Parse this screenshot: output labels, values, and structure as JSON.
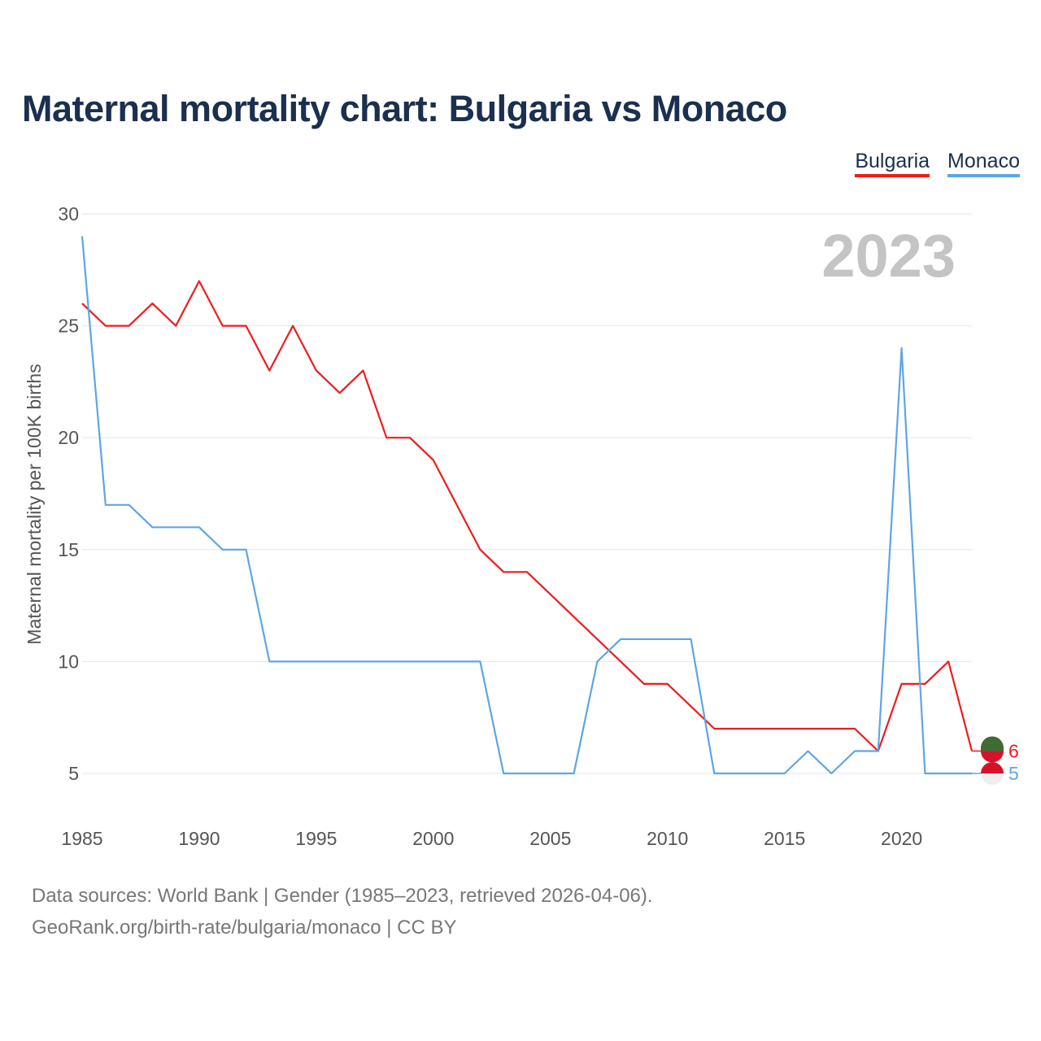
{
  "title": "Maternal mortality chart: Bulgaria vs Monaco",
  "legend": {
    "bulgaria": "Bulgaria",
    "monaco": "Monaco"
  },
  "colors": {
    "bulgaria": "#ee1c1c",
    "monaco": "#5ea5e5",
    "title": "#1b2f4e",
    "grid": "#e6e6e6"
  },
  "year_badge": "2023",
  "end_labels": {
    "bulgaria": "6",
    "monaco": "5"
  },
  "footer": {
    "source": "Data sources: World Bank | Gender (1985–2023, retrieved 2026-04-06).",
    "attribution": "GeoRank.org/birth-rate/bulgaria/monaco | CC BY"
  },
  "chart_data": {
    "type": "line",
    "title": "Maternal mortality chart: Bulgaria vs Monaco",
    "xlabel": "",
    "ylabel": "Maternal mortality per 100K births",
    "xlim": [
      1985,
      2023
    ],
    "ylim": [
      4,
      30
    ],
    "x_ticks": [
      1985,
      1990,
      1995,
      2000,
      2005,
      2010,
      2015,
      2020
    ],
    "y_ticks": [
      5,
      10,
      15,
      20,
      25,
      30
    ],
    "grid": true,
    "legend": "top-right",
    "x": [
      1985,
      1986,
      1987,
      1988,
      1989,
      1990,
      1991,
      1992,
      1993,
      1994,
      1995,
      1996,
      1997,
      1998,
      1999,
      2000,
      2001,
      2002,
      2003,
      2004,
      2005,
      2006,
      2007,
      2008,
      2009,
      2010,
      2011,
      2012,
      2013,
      2014,
      2015,
      2016,
      2017,
      2018,
      2019,
      2020,
      2021,
      2022,
      2023
    ],
    "series": [
      {
        "name": "Bulgaria",
        "values": [
          26,
          25,
          25,
          26,
          25,
          27,
          25,
          25,
          23,
          25,
          23,
          22,
          23,
          20,
          20,
          19,
          17,
          15,
          14,
          14,
          13,
          12,
          11,
          10,
          9,
          9,
          8,
          7,
          7,
          7,
          7,
          7,
          7,
          7,
          6,
          9,
          9,
          10,
          6
        ]
      },
      {
        "name": "Monaco",
        "values": [
          29,
          17,
          17,
          16,
          16,
          16,
          15,
          15,
          10,
          10,
          10,
          10,
          10,
          10,
          10,
          10,
          10,
          10,
          5,
          5,
          5,
          5,
          10,
          11,
          11,
          11,
          11,
          5,
          5,
          5,
          5,
          6,
          5,
          6,
          6,
          24,
          5,
          5,
          5
        ]
      }
    ]
  }
}
